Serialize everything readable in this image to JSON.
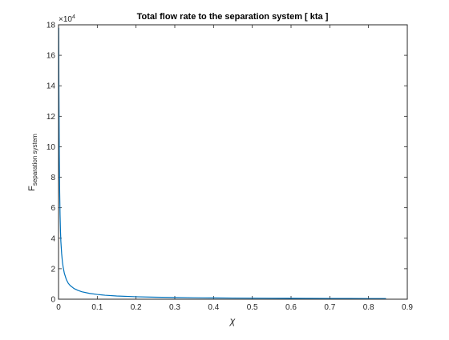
{
  "chart_data": {
    "type": "line",
    "title": "Total flow rate to the separation system [ kta ]",
    "xlabel": "χ",
    "ylabel": {
      "main": "F",
      "subscript": "separation system"
    },
    "xlim": [
      0,
      0.9
    ],
    "ylim": [
      0,
      180000
    ],
    "x_ticks": [
      0,
      0.1,
      0.2,
      0.3,
      0.4,
      0.5,
      0.6,
      0.7,
      0.8,
      0.9
    ],
    "x_tick_labels": [
      "0",
      "0.1",
      "0.2",
      "0.3",
      "0.4",
      "0.5",
      "0.6",
      "0.7",
      "0.8",
      "0.9"
    ],
    "y_ticks": [
      0,
      20000,
      40000,
      60000,
      80000,
      100000,
      120000,
      140000,
      160000,
      180000
    ],
    "y_tick_labels": [
      "0",
      "2",
      "4",
      "6",
      "8",
      "10",
      "12",
      "14",
      "16",
      "18"
    ],
    "y_exponent_label": {
      "base": "×10",
      "power": "4"
    },
    "grid": false,
    "box": true,
    "line_color": "#0072BD",
    "axes_color": "#262626",
    "series": [
      {
        "x": [
          0.0005,
          0.001,
          0.002,
          0.003,
          0.004,
          0.005,
          0.006,
          0.008,
          0.01,
          0.012,
          0.015,
          0.02,
          0.025,
          0.03,
          0.04,
          0.05,
          0.06,
          0.08,
          0.1,
          0.12,
          0.15,
          0.2,
          0.25,
          0.3,
          0.35,
          0.4,
          0.45,
          0.5,
          0.55,
          0.6,
          0.65,
          0.7,
          0.75,
          0.8,
          0.845
        ],
        "y": [
          178000,
          140000,
          95000,
          70000,
          55000,
          45000,
          38000,
          30000,
          24500,
          21000,
          17000,
          13000,
          10500,
          9000,
          7000,
          5800,
          4900,
          3800,
          3100,
          2600,
          2100,
          1600,
          1300,
          1100,
          950,
          840,
          750,
          680,
          620,
          570,
          530,
          490,
          460,
          430,
          410
        ]
      }
    ]
  }
}
